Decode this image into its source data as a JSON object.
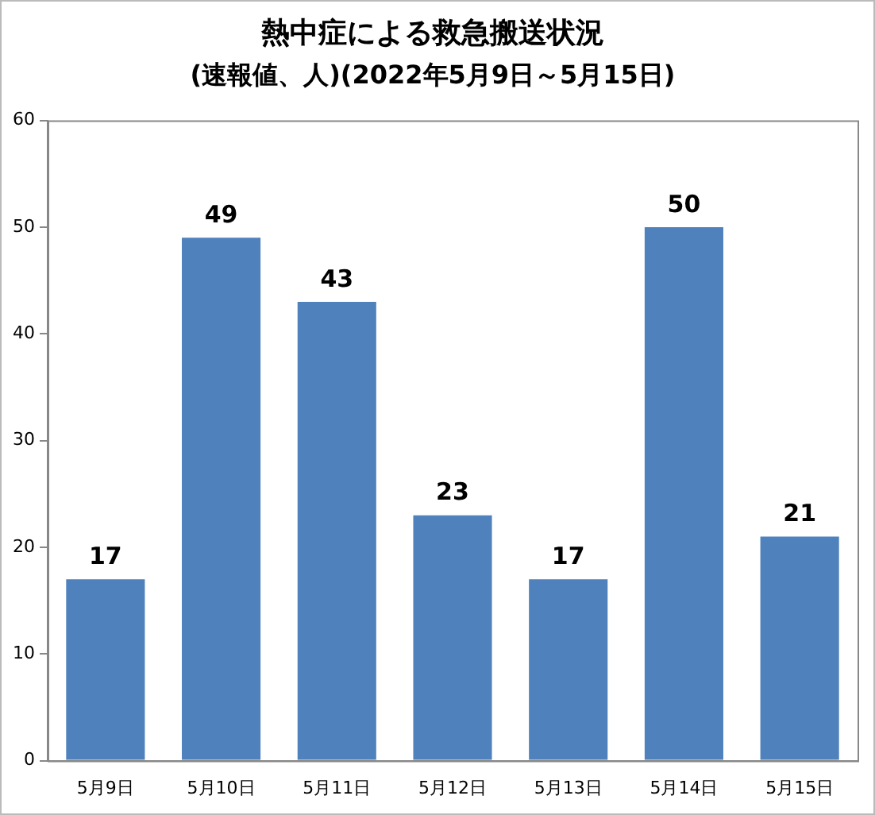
{
  "chart_data": {
    "type": "bar",
    "title": "熱中症による救急搬送状況",
    "subtitle": "(速報値、人)(2022年5月9日～5月15日)",
    "categories": [
      "5月9日",
      "5月10日",
      "5月11日",
      "5月12日",
      "5月13日",
      "5月14日",
      "5月15日"
    ],
    "values": [
      17,
      49,
      43,
      23,
      17,
      50,
      21
    ],
    "color": "#4f81bd",
    "ylim": [
      0,
      60
    ],
    "yticks": [
      0,
      10,
      20,
      30,
      40,
      50,
      60
    ],
    "data_labels": true
  }
}
